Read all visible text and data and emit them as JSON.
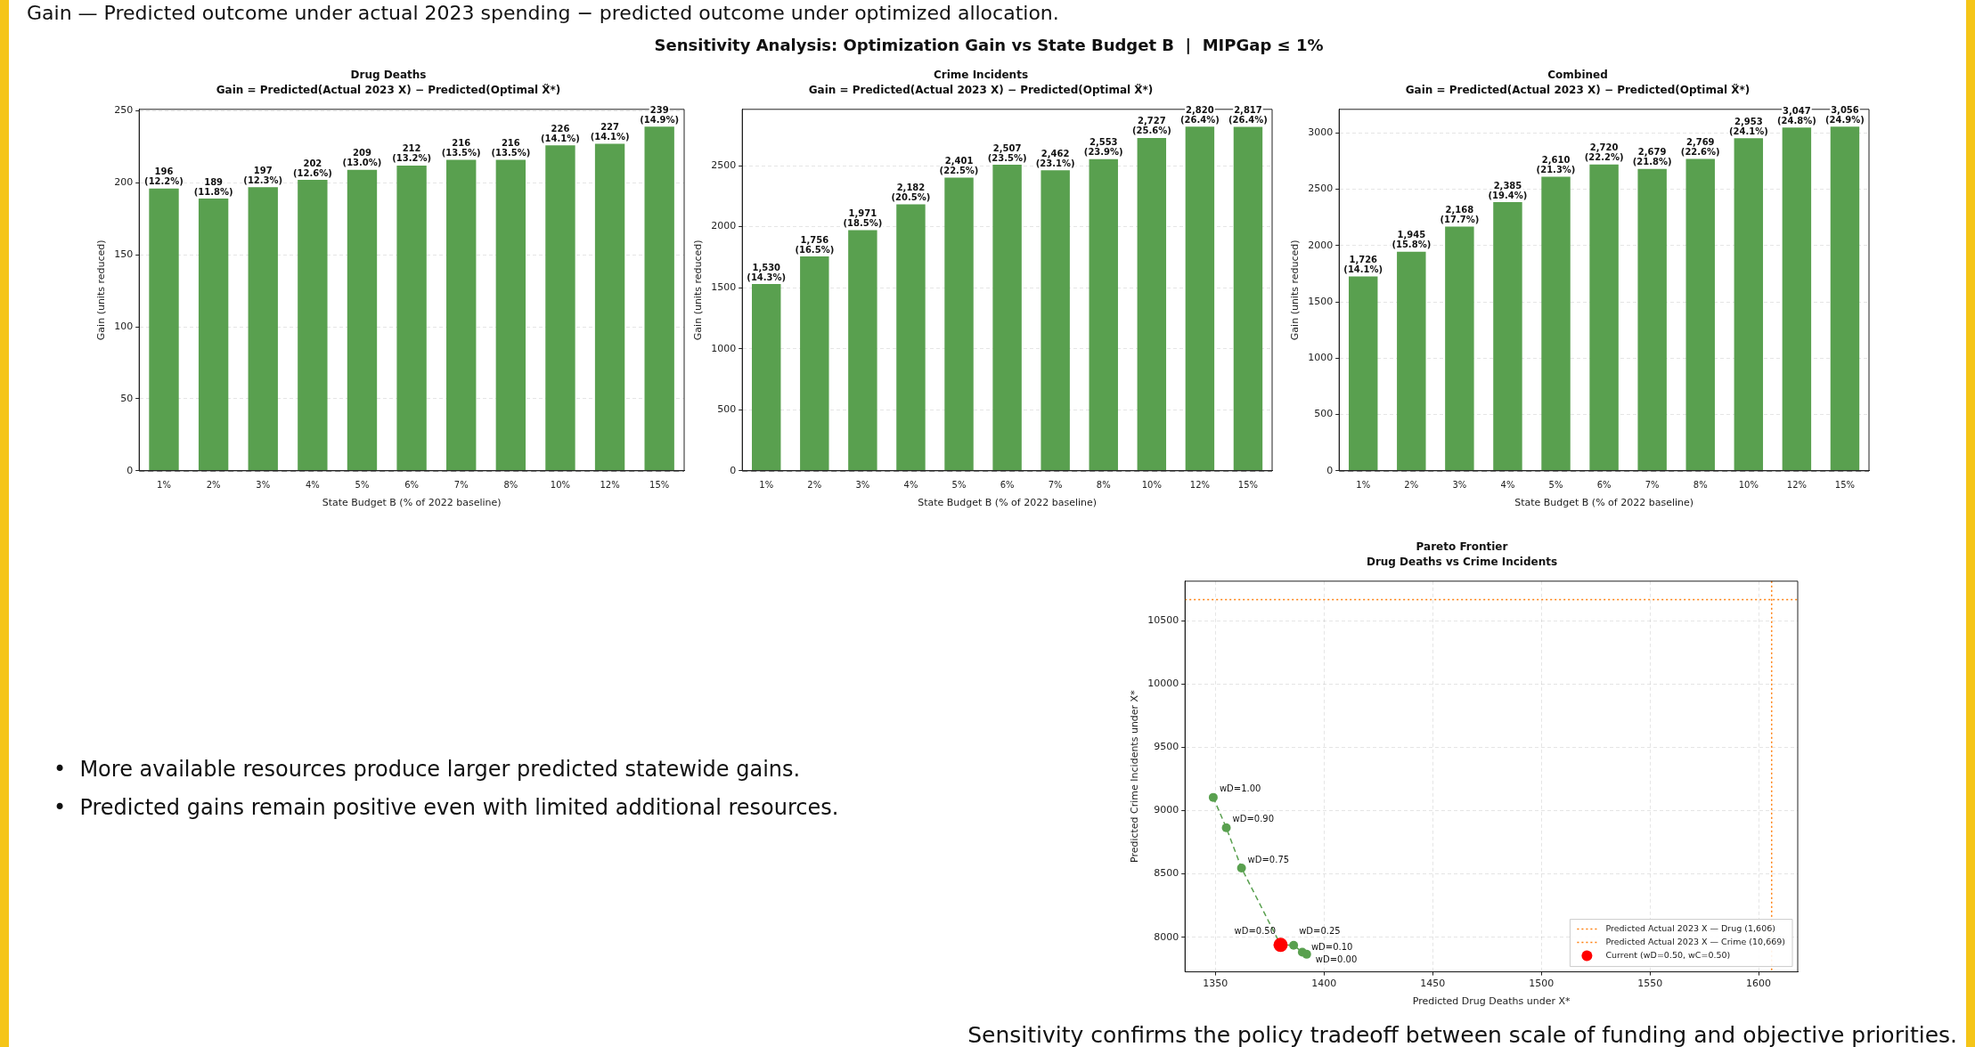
{
  "chart_data": [
    {
      "type": "bar",
      "title": "Drug Deaths",
      "subtitle": "Gain = Predicted(Actual 2023 X) − Predicted(Optimal X̃*)",
      "xlabel": "State Budget B (% of 2022 baseline)",
      "ylabel": "Gain (units reduced)",
      "categories": [
        "1%",
        "2%",
        "3%",
        "4%",
        "5%",
        "6%",
        "7%",
        "8%",
        "10%",
        "12%",
        "15%"
      ],
      "values": [
        196,
        189,
        197,
        202,
        209,
        212,
        216,
        216,
        226,
        227,
        239
      ],
      "value_labels": [
        "196\n(12.2%)",
        "189\n(11.8%)",
        "197\n(12.3%)",
        "202\n(12.6%)",
        "209\n(13.0%)",
        "212\n(13.2%)",
        "216\n(13.5%)",
        "216\n(13.5%)",
        "226\n(14.1%)",
        "227\n(14.1%)",
        "239\n(14.9%)"
      ],
      "color": "#59a04f",
      "ylim": [
        0,
        251
      ],
      "yticks": [
        0,
        50,
        100,
        150,
        200,
        250
      ],
      "grid": "y",
      "ref_lines": [
        {
          "axis": "y",
          "value": 0,
          "color": "#333333",
          "line_style": "dashed"
        }
      ],
      "annotations": [
        "Gain — Predicted outcome under actual 2023 spending − predicted outcome under optimized allocation.",
        "Sensitivity Analysis: Optimization Gain vs State Budget B  |  MIPGap ≤ 1%"
      ]
    },
    {
      "type": "bar",
      "title": "Crime Incidents",
      "subtitle": "Gain = Predicted(Actual 2023 X) − Predicted(Optimal X̃*)",
      "xlabel": "State Budget B (% of 2022 baseline)",
      "ylabel": "Gain (units reduced)",
      "categories": [
        "1%",
        "2%",
        "3%",
        "4%",
        "5%",
        "6%",
        "7%",
        "8%",
        "10%",
        "12%",
        "15%"
      ],
      "values": [
        1530,
        1756,
        1971,
        2182,
        2401,
        2507,
        2462,
        2553,
        2727,
        2820,
        2817
      ],
      "value_labels": [
        "1,530\n(14.3%)",
        "1,756\n(16.5%)",
        "1,971\n(18.5%)",
        "2,182\n(20.5%)",
        "2,401\n(22.5%)",
        "2,507\n(23.5%)",
        "2,462\n(23.1%)",
        "2,553\n(23.9%)",
        "2,727\n(25.6%)",
        "2,820\n(26.4%)",
        "2,817\n(26.4%)"
      ],
      "color": "#59a04f",
      "ylim": [
        0,
        2961
      ],
      "yticks": [
        0,
        500,
        1000,
        1500,
        2000,
        2500
      ],
      "grid": "y",
      "ref_lines": [
        {
          "axis": "y",
          "value": 0,
          "color": "#333333",
          "line_style": "dashed"
        }
      ]
    },
    {
      "type": "bar",
      "title": "Combined",
      "subtitle": "Gain = Predicted(Actual 2023 X) − Predicted(Optimal X̃*)",
      "xlabel": "State Budget B (% of 2022 baseline)",
      "ylabel": "Gain (units reduced)",
      "categories": [
        "1%",
        "2%",
        "3%",
        "4%",
        "5%",
        "6%",
        "7%",
        "8%",
        "10%",
        "12%",
        "15%"
      ],
      "values": [
        1726,
        1945,
        2168,
        2385,
        2610,
        2720,
        2679,
        2769,
        2953,
        3047,
        3056
      ],
      "value_labels": [
        "1,726\n(14.1%)",
        "1,945\n(15.8%)",
        "2,168\n(17.7%)",
        "2,385\n(19.4%)",
        "2,610\n(21.3%)",
        "2,720\n(22.2%)",
        "2,679\n(21.8%)",
        "2,769\n(22.6%)",
        "2,953\n(24.1%)",
        "3,047\n(24.8%)",
        "3,056\n(24.9%)"
      ],
      "color": "#59a04f",
      "ylim": [
        0,
        3209
      ],
      "yticks": [
        0,
        500,
        1000,
        1500,
        2000,
        2500,
        3000
      ],
      "grid": "y",
      "ref_lines": [
        {
          "axis": "y",
          "value": 0,
          "color": "#333333",
          "line_style": "dashed"
        }
      ]
    },
    {
      "type": "scatter",
      "title": "Pareto Frontier",
      "subtitle": "Drug Deaths vs Crime Incidents",
      "xlabel": "Predicted Drug Deaths under X*",
      "ylabel": "Predicted Crime Incidents under X*",
      "xlim": [
        1336,
        1618
      ],
      "xticks": [
        1350,
        1400,
        1450,
        1500,
        1550,
        1600
      ],
      "ylim": [
        7726,
        10814
      ],
      "yticks": [
        8000,
        8500,
        9000,
        9500,
        10000,
        10500
      ],
      "grid": true,
      "legend": "bottom right",
      "series": [
        {
          "type": "line",
          "color": "#59a04f",
          "marker": "circle",
          "line_style": "dashed",
          "x": [
            1349,
            1355,
            1362,
            1380,
            1386,
            1390,
            1392
          ],
          "values": [
            9105,
            8865,
            8547,
            7939,
            7936,
            7882,
            7865
          ]
        },
        {
          "type": "scatter",
          "name": "Current (wD=0.50, wC=0.50)",
          "color": "#ff0000",
          "marker": "circle",
          "x": [
            1380
          ],
          "values": [
            7939
          ]
        }
      ],
      "ref_lines": [
        {
          "axis": "x",
          "value": 1606,
          "label": "Predicted Actual 2023 X — Drug (1,606)",
          "color": "#ff7f0e",
          "line_style": "dotted"
        },
        {
          "axis": "y",
          "value": 10669,
          "label": "Predicted Actual 2023 X — Crime (10,669)",
          "color": "#ff7f0e",
          "line_style": "dotted"
        }
      ],
      "annotations": [
        {
          "text": "wD=1.00",
          "x": 1349,
          "y": 9105
        },
        {
          "text": "wD=0.90",
          "x": 1355,
          "y": 8865
        },
        {
          "text": "wD=0.75",
          "x": 1362,
          "y": 8547
        },
        {
          "text": "wD=0.50",
          "x": 1380,
          "y": 7939
        },
        {
          "text": "wD=0.25",
          "x": 1386,
          "y": 7936
        },
        {
          "text": "wD=0.10",
          "x": 1390,
          "y": 7882
        },
        {
          "text": "wD=0.00",
          "x": 1392,
          "y": 7865
        },
        "•  More available resources produce larger predicted statewide gains.",
        "•  Predicted gains remain positive even with limited additional resources.",
        "Sensitivity confirms the policy tradeoff between scale of funding and objective priorities."
      ]
    }
  ]
}
